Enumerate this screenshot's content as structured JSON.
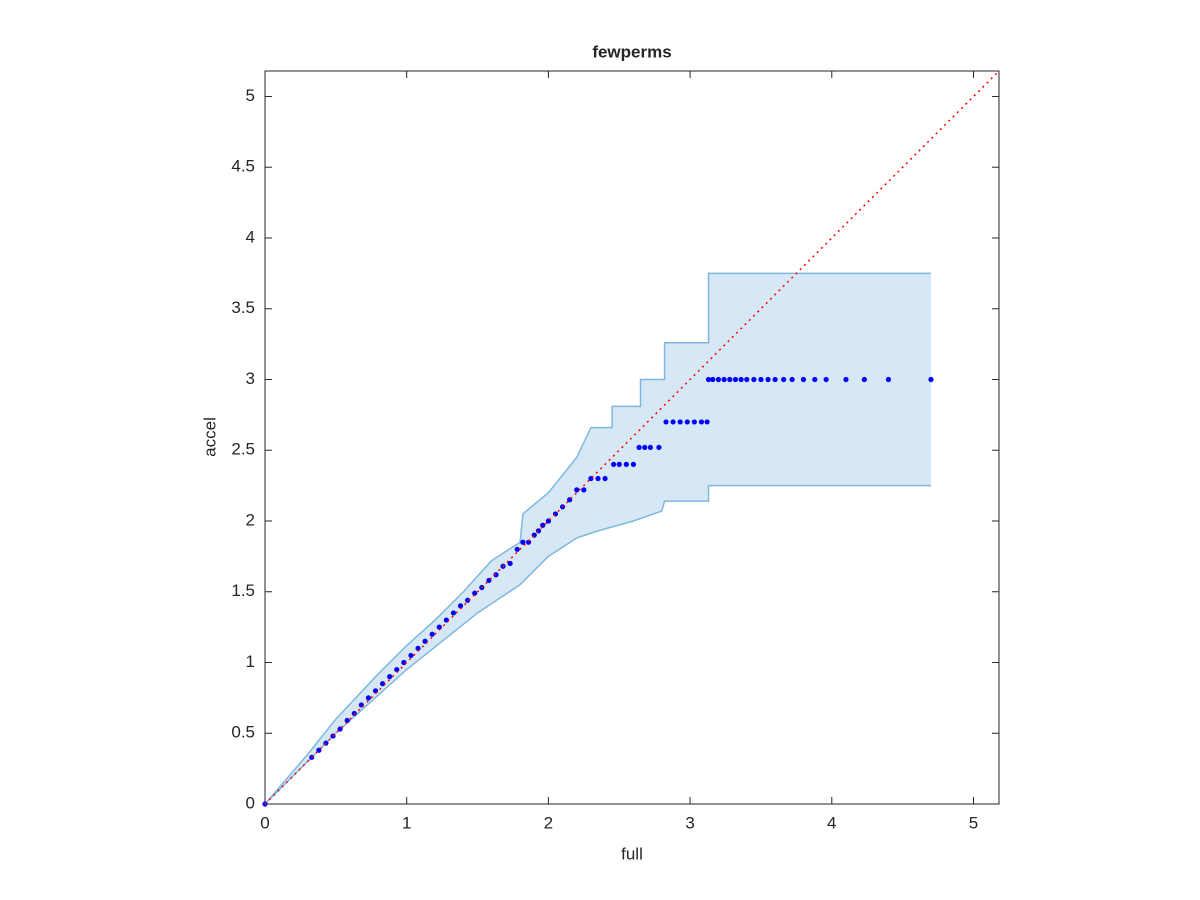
{
  "chart_data": {
    "type": "scatter",
    "title": "fewperms",
    "x_label": "full",
    "y_label": "accel",
    "xlim": [
      0,
      5.18
    ],
    "ylim": [
      0,
      5.18
    ],
    "xticks": [
      0,
      1,
      2,
      3,
      4,
      5
    ],
    "yticks": [
      0,
      0.5,
      1,
      1.5,
      2,
      2.5,
      3,
      3.5,
      4,
      4.5,
      5
    ],
    "color": "#0000ff",
    "x": [
      0,
      0.33,
      0.38,
      0.43,
      0.48,
      0.53,
      0.58,
      0.63,
      0.68,
      0.73,
      0.78,
      0.83,
      0.88,
      0.93,
      0.98,
      1.03,
      1.08,
      1.13,
      1.18,
      1.23,
      1.28,
      1.33,
      1.38,
      1.43,
      1.48,
      1.53,
      1.58,
      1.63,
      1.68,
      1.73,
      1.78,
      1.82,
      1.86,
      1.9,
      1.93,
      1.96,
      2.0,
      2.05,
      2.1,
      2.15,
      2.2,
      2.25,
      2.3,
      2.35,
      2.4,
      2.46,
      2.5,
      2.55,
      2.6,
      2.64,
      2.68,
      2.72,
      2.78,
      2.83,
      2.88,
      2.93,
      2.98,
      3.03,
      3.08,
      3.12,
      3.13,
      3.16,
      3.2,
      3.24,
      3.28,
      3.32,
      3.36,
      3.4,
      3.45,
      3.5,
      3.55,
      3.6,
      3.66,
      3.72,
      3.8,
      3.88,
      3.96,
      4.1,
      4.23,
      4.4,
      4.7
    ],
    "values": [
      0,
      0.33,
      0.38,
      0.43,
      0.48,
      0.53,
      0.59,
      0.64,
      0.7,
      0.75,
      0.8,
      0.85,
      0.9,
      0.95,
      1.0,
      1.05,
      1.1,
      1.15,
      1.2,
      1.25,
      1.3,
      1.35,
      1.4,
      1.44,
      1.49,
      1.53,
      1.58,
      1.62,
      1.68,
      1.7,
      1.8,
      1.85,
      1.85,
      1.9,
      1.93,
      1.97,
      2.0,
      2.05,
      2.1,
      2.15,
      2.22,
      2.22,
      2.3,
      2.3,
      2.3,
      2.4,
      2.4,
      2.4,
      2.4,
      2.52,
      2.52,
      2.52,
      2.52,
      2.7,
      2.7,
      2.7,
      2.7,
      2.7,
      2.7,
      2.7,
      3.0,
      3.0,
      3.0,
      3.0,
      3.0,
      3.0,
      3.0,
      3.0,
      3.0,
      3.0,
      3.0,
      3.0,
      3.0,
      3.0,
      3.0,
      3.0,
      3.0,
      3.0,
      3.0,
      3.0,
      3.0
    ],
    "band": {
      "color": "#d6e8f5",
      "edge_color": "#7fb8dc",
      "upper": {
        "x": [
          0,
          0.3,
          0.5,
          0.8,
          1.0,
          1.2,
          1.4,
          1.6,
          1.8,
          1.82,
          2.0,
          2.2,
          2.3,
          2.45,
          2.45,
          2.65,
          2.65,
          2.82,
          2.82,
          3.13,
          3.13,
          4.7
        ],
        "y": [
          0,
          0.35,
          0.6,
          0.92,
          1.12,
          1.3,
          1.5,
          1.72,
          1.85,
          2.05,
          2.2,
          2.45,
          2.66,
          2.66,
          2.81,
          2.81,
          3.0,
          3.0,
          3.26,
          3.26,
          3.75,
          3.75
        ]
      },
      "lower": {
        "x": [
          0,
          0.5,
          1.0,
          1.5,
          1.8,
          2.0,
          2.2,
          2.35,
          2.6,
          2.8,
          2.82,
          3.13,
          3.13,
          4.7
        ],
        "y": [
          0,
          0.5,
          0.95,
          1.35,
          1.55,
          1.75,
          1.88,
          1.93,
          2.0,
          2.07,
          2.14,
          2.14,
          2.25,
          2.25
        ]
      }
    },
    "reference_line": {
      "color": "#ff0000",
      "x": [
        0,
        5.18
      ],
      "y": [
        0,
        5.18
      ]
    }
  }
}
